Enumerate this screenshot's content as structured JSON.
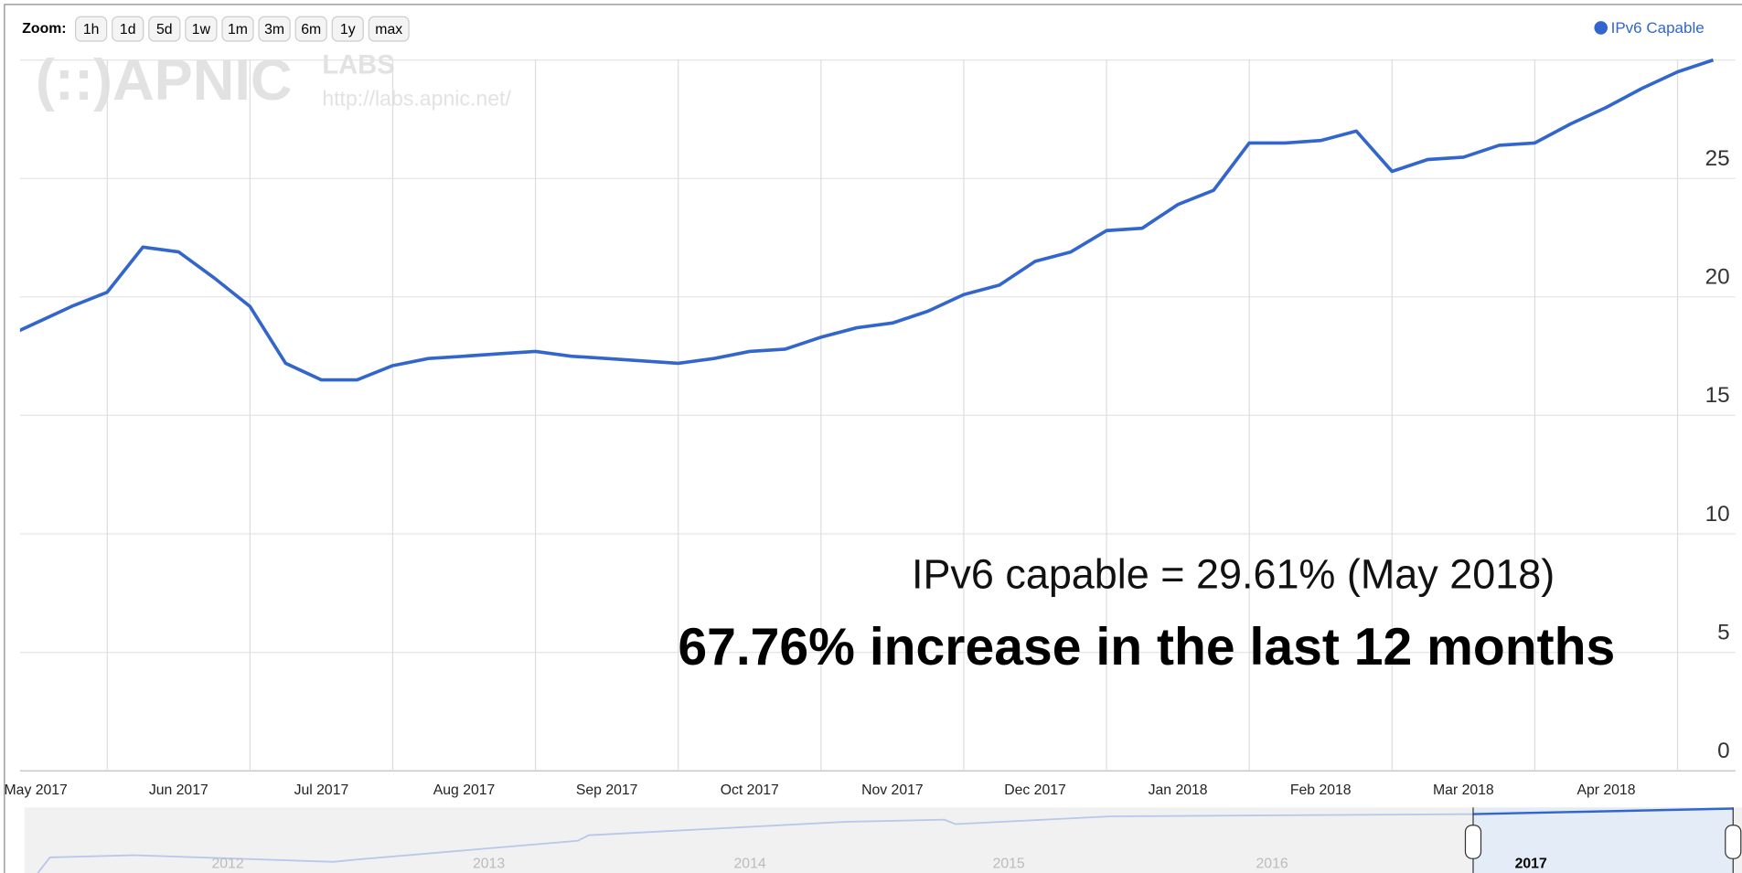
{
  "zoom": {
    "label": "Zoom:",
    "buttons": [
      "1h",
      "1d",
      "5d",
      "1w",
      "1m",
      "3m",
      "6m",
      "1y",
      "max"
    ]
  },
  "watermark": {
    "logo": "(::)APNIC",
    "labs": "LABS",
    "url": "http://labs.apnic.net/"
  },
  "navigator": {
    "labels": [
      "2012",
      "2013",
      "2014",
      "2015",
      "2016",
      "2017"
    ]
  },
  "chart_data": {
    "type": "line",
    "annotations": [
      "IPv6 capable = 29.61% (May 2018)",
      "67.76% increase in the last 12 months"
    ],
    "categories": [
      "May 2017",
      null,
      null,
      null,
      "Jun 2017",
      null,
      null,
      null,
      "Jul 2017",
      null,
      null,
      null,
      "Aug 2017",
      null,
      null,
      null,
      "Sep 2017",
      null,
      null,
      null,
      "Oct 2017",
      null,
      null,
      null,
      "Nov 2017",
      null,
      null,
      null,
      "Dec 2017",
      null,
      null,
      null,
      "Jan 2018",
      null,
      null,
      null,
      "Feb 2018",
      null,
      null,
      null,
      "Mar 2018",
      null,
      null,
      null,
      "Apr 2018",
      null,
      null,
      null,
      null,
      null
    ],
    "series": [
      {
        "name": "IPv6 Capable",
        "color": "#3366cc",
        "values": [
          17.8,
          18.2,
          18.9,
          19.6,
          20.2,
          22.1,
          21.9,
          20.8,
          19.6,
          17.2,
          16.5,
          16.5,
          17.1,
          17.4,
          17.5,
          17.6,
          17.7,
          17.5,
          17.4,
          17.3,
          17.2,
          17.4,
          17.7,
          17.8,
          18.3,
          18.7,
          18.9,
          19.4,
          20.1,
          20.5,
          21.5,
          21.9,
          22.8,
          22.9,
          23.9,
          24.5,
          26.5,
          26.5,
          26.6,
          27.0,
          25.3,
          25.8,
          25.9,
          26.4,
          26.5,
          27.3,
          28.0,
          28.8,
          29.5,
          30.0
        ]
      }
    ],
    "ylim": [
      0,
      30
    ],
    "yticks": [
      0,
      5,
      10,
      15,
      20,
      25
    ],
    "grid": true,
    "legend": "top-right"
  }
}
